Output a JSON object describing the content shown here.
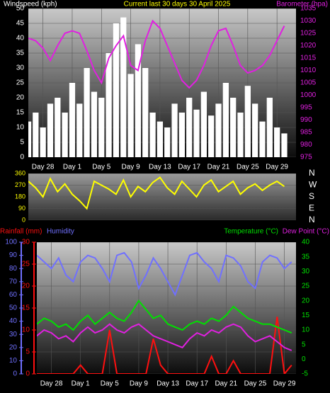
{
  "chart_data": [
    {
      "type": "combo",
      "title": "Current last 30 days 30 April 2025",
      "x": [
        0,
        1,
        2,
        3,
        4,
        5,
        6,
        7,
        8,
        9,
        10,
        11,
        12,
        13,
        14,
        15,
        16,
        17,
        18,
        19,
        20,
        21,
        22,
        23,
        24,
        25,
        26,
        27,
        28,
        29,
        30,
        31,
        32,
        33,
        34,
        35
      ],
      "xlim": [
        0,
        36.6
      ],
      "xticks": [
        {
          "value": 2,
          "label": "Day 28"
        },
        {
          "value": 6,
          "label": "Day 1"
        },
        {
          "value": 10,
          "label": "Day 5"
        },
        {
          "value": 14,
          "label": "Day 9"
        },
        {
          "value": 18,
          "label": "Day 13"
        },
        {
          "value": 22,
          "label": "Day 17"
        },
        {
          "value": 26,
          "label": "Day 21"
        },
        {
          "value": 30,
          "label": "Day 25"
        },
        {
          "value": 34,
          "label": "Day 29"
        }
      ],
      "ylim": [
        0,
        50
      ],
      "yticks": [
        0,
        5,
        10,
        15,
        20,
        25,
        30,
        35,
        40,
        45,
        50
      ],
      "y2lim": [
        975,
        1035
      ],
      "y2ticks": [
        975,
        980,
        985,
        990,
        995,
        1000,
        1005,
        1010,
        1015,
        1020,
        1025,
        1030,
        1035
      ],
      "grid": true,
      "series": [
        {
          "name": "Windspeed (kph)",
          "type": "bar",
          "color": "#ffffff",
          "values": [
            12,
            15,
            10,
            18,
            20,
            15,
            25,
            18,
            30,
            22,
            20,
            35,
            45,
            47,
            28,
            38,
            30,
            15,
            12,
            10,
            18,
            15,
            20,
            16,
            22,
            14,
            18,
            25,
            20,
            15,
            24,
            18,
            12,
            20,
            10,
            8
          ]
        },
        {
          "name": "Barometer (hpa)",
          "type": "line",
          "axis": "y2",
          "color": "#e020e0",
          "values": [
            1023,
            1022,
            1019,
            1014,
            1020,
            1025,
            1026,
            1025,
            1018,
            1010,
            1005,
            1015,
            1020,
            1024,
            1012,
            1010,
            1022,
            1030,
            1027,
            1020,
            1013,
            1006,
            1003,
            1006,
            1012,
            1020,
            1026,
            1027,
            1020,
            1012,
            1009,
            1010,
            1012,
            1016,
            1022,
            1028
          ]
        }
      ]
    },
    {
      "type": "combo",
      "x": [
        0,
        1,
        2,
        3,
        4,
        5,
        6,
        7,
        8,
        9,
        10,
        11,
        12,
        13,
        14,
        15,
        16,
        17,
        18,
        19,
        20,
        21,
        22,
        23,
        24,
        25,
        26,
        27,
        28,
        29,
        30,
        31,
        32,
        33,
        34,
        35
      ],
      "xlim": [
        0,
        36.6
      ],
      "ylim": [
        0,
        360
      ],
      "yticks": [
        0,
        90,
        180,
        270,
        360
      ],
      "y2lim": [
        0,
        360
      ],
      "y2ticks": [
        {
          "value": 0,
          "label": "N"
        },
        {
          "value": 90,
          "label": "E"
        },
        {
          "value": 180,
          "label": "S"
        },
        {
          "value": 270,
          "label": "W"
        },
        {
          "value": 360,
          "label": "N"
        }
      ],
      "grid": true,
      "series": [
        {
          "type": "line",
          "color": "#ffff00",
          "values": [
            300,
            250,
            180,
            320,
            220,
            280,
            200,
            150,
            90,
            300,
            270,
            240,
            200,
            310,
            180,
            260,
            220,
            290,
            330,
            250,
            200,
            300,
            240,
            180,
            270,
            310,
            220,
            260,
            300,
            200,
            250,
            280,
            230,
            270,
            300,
            260
          ]
        }
      ]
    },
    {
      "type": "combo",
      "x": [
        0,
        1,
        2,
        3,
        4,
        5,
        6,
        7,
        8,
        9,
        10,
        11,
        12,
        13,
        14,
        15,
        16,
        17,
        18,
        19,
        20,
        21,
        22,
        23,
        24,
        25,
        26,
        27,
        28,
        29,
        30,
        31,
        32,
        33,
        34,
        35
      ],
      "xlim": [
        0,
        35.6
      ],
      "xticks": [
        {
          "value": 2,
          "label": "Day 28"
        },
        {
          "value": 6,
          "label": "Day 1"
        },
        {
          "value": 10,
          "label": "Day 5"
        },
        {
          "value": 14,
          "label": "Day 9"
        },
        {
          "value": 18,
          "label": "Day 13"
        },
        {
          "value": 22,
          "label": "Day 17"
        },
        {
          "value": 26,
          "label": "Day 21"
        },
        {
          "value": 30,
          "label": "Day 25"
        },
        {
          "value": 34,
          "label": "Day 29"
        }
      ],
      "ylim": [
        0,
        30
      ],
      "yticks": [
        0,
        5,
        10,
        15,
        20,
        25,
        30
      ],
      "y2lim": [
        -5,
        40
      ],
      "y2ticks": [
        -5,
        0,
        5,
        10,
        15,
        20,
        25,
        30,
        35,
        40
      ],
      "y3lim": [
        0,
        100
      ],
      "y3ticks": [
        0,
        10,
        20,
        30,
        40,
        50,
        60,
        70,
        80,
        90,
        100
      ],
      "grid": true,
      "series": [
        {
          "name": "Rainfall (mm)",
          "type": "line",
          "color": "#ff1010",
          "values": [
            0,
            0,
            0,
            0,
            0,
            0,
            2,
            0,
            0,
            0,
            10,
            0,
            0,
            0,
            0,
            0,
            8,
            2,
            0,
            0,
            0,
            0,
            0,
            0,
            4,
            0,
            0,
            3,
            0,
            0,
            0,
            0,
            0,
            13,
            0,
            2
          ]
        },
        {
          "name": "Humidity",
          "type": "line",
          "axis": "y3",
          "color": "#7070ff",
          "values": [
            90,
            85,
            80,
            88,
            75,
            70,
            85,
            90,
            88,
            80,
            70,
            90,
            92,
            85,
            65,
            75,
            88,
            80,
            70,
            60,
            75,
            90,
            92,
            85,
            80,
            70,
            90,
            88,
            82,
            70,
            65,
            85,
            90,
            88,
            80,
            85
          ]
        },
        {
          "name": "Temperature (°C)",
          "type": "line",
          "axis": "y2",
          "color": "#00e000",
          "values": [
            12,
            14,
            13,
            11,
            12,
            10,
            13,
            15,
            12,
            14,
            16,
            14,
            13,
            16,
            20,
            17,
            14,
            15,
            12,
            11,
            10,
            12,
            13,
            12,
            14,
            13,
            15,
            18,
            16,
            14,
            13,
            12,
            12,
            11,
            10,
            9
          ]
        },
        {
          "name": "Dew Point (°C)",
          "type": "line",
          "axis": "y2",
          "color": "#e020e0",
          "values": [
            8,
            10,
            9,
            7,
            8,
            6,
            9,
            11,
            9,
            10,
            12,
            10,
            9,
            11,
            12,
            10,
            8,
            7,
            6,
            5,
            4,
            7,
            9,
            8,
            10,
            9,
            11,
            12,
            11,
            8,
            6,
            7,
            8,
            6,
            4,
            3
          ]
        }
      ]
    }
  ]
}
